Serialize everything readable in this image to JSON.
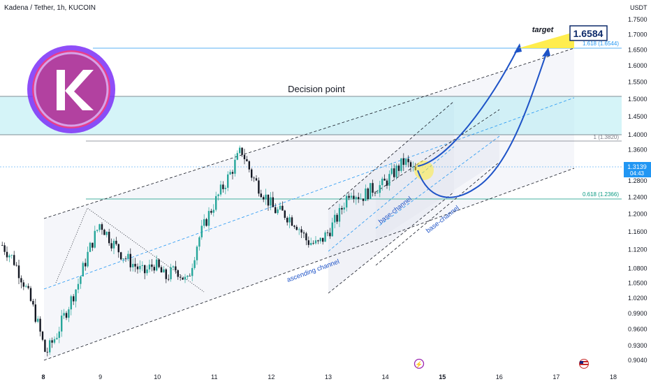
{
  "header": {
    "title": "Kadena / Tether, 1h, KUCOIN"
  },
  "axis": {
    "currency": "USDT"
  },
  "chart_data": {
    "type": "candlestick",
    "symbol": "Kadena / Tether",
    "interval": "1h",
    "exchange": "KUCOIN",
    "x_labels": [
      "8",
      "9",
      "10",
      "11",
      "12",
      "13",
      "14",
      "15",
      "16",
      "17",
      "18"
    ],
    "y_ticks": [
      "1.7500",
      "1.7000",
      "1.6500",
      "1.6000",
      "1.5500",
      "1.5000",
      "1.4500",
      "1.4000",
      "1.3600",
      "1.3200",
      "1.2800",
      "1.2400",
      "1.2000",
      "1.1600",
      "1.1200",
      "1.0800",
      "1.0500",
      "1.0200",
      "0.9900",
      "0.9600",
      "0.9300",
      "0.9040"
    ],
    "ylim": [
      0.896,
      1.78
    ],
    "y_scale": "log",
    "price_series": [
      [
        "8",
        1.13
      ],
      [
        "8",
        1.1
      ],
      [
        "8",
        1.05
      ],
      [
        "8",
        0.99
      ],
      [
        "8",
        0.915
      ],
      [
        "8",
        0.95
      ],
      [
        "8",
        1.0
      ],
      [
        "9",
        1.05
      ],
      [
        "9",
        1.12
      ],
      [
        "9",
        1.18
      ],
      [
        "9",
        1.14
      ],
      [
        "9",
        1.11
      ],
      [
        "9",
        1.09
      ],
      [
        "10",
        1.07
      ],
      [
        "10",
        1.09
      ],
      [
        "10",
        1.06
      ],
      [
        "10",
        1.08
      ],
      [
        "10",
        1.05
      ],
      [
        "11",
        1.14
      ],
      [
        "11",
        1.2
      ],
      [
        "11",
        1.25
      ],
      [
        "11",
        1.3
      ],
      [
        "11",
        1.36
      ],
      [
        "12",
        1.29
      ],
      [
        "12",
        1.25
      ],
      [
        "12",
        1.21
      ],
      [
        "12",
        1.2
      ],
      [
        "12",
        1.18
      ],
      [
        "12",
        1.14
      ],
      [
        "13",
        1.13
      ],
      [
        "13",
        1.16
      ],
      [
        "13",
        1.2
      ],
      [
        "13",
        1.26
      ],
      [
        "13",
        1.24
      ],
      [
        "13",
        1.26
      ],
      [
        "14",
        1.27
      ],
      [
        "14",
        1.3
      ],
      [
        "14",
        1.33
      ],
      [
        "14",
        1.3
      ]
    ],
    "last_price": "1.3139",
    "countdown": "04:43",
    "levels": [
      {
        "label": "1.618 (1.6544)",
        "value": 1.6544
      },
      {
        "label": "1 (1.3820)",
        "value": 1.382
      },
      {
        "label": "0.618 (1.2366)",
        "value": 1.2366
      }
    ],
    "zone": {
      "label": "Decision point",
      "top": 1.51,
      "bottom": 1.4
    },
    "target": {
      "label": "target",
      "value": "1.6584"
    },
    "annotations": [
      "ascending channel",
      "base-channel",
      "base-channel"
    ],
    "colors": {
      "up": "#26a69a",
      "down": "#131722",
      "accent": "#2962ff",
      "zone": "#b2ebf2",
      "target": "#ffeb3b"
    }
  }
}
